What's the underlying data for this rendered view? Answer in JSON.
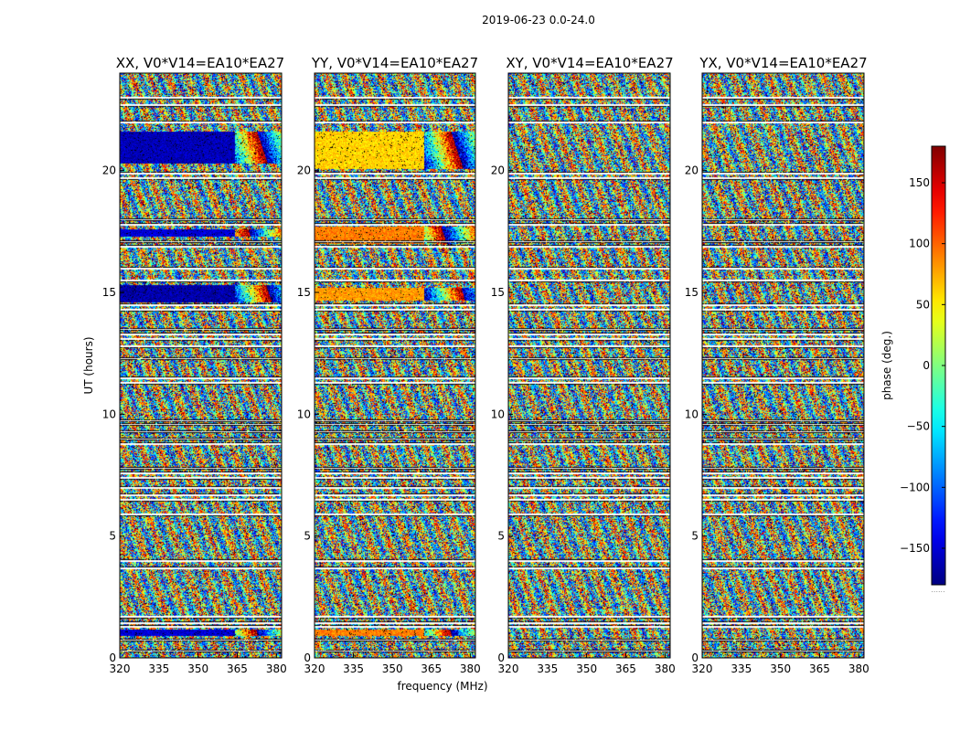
{
  "chart_data": {
    "type": "heatmap",
    "suptitle": "2019-06-23 0.0-24.0",
    "xlabel": "frequency (MHz)",
    "ylabel": "UT (hours)",
    "xlim": [
      320,
      382
    ],
    "ylim": [
      0,
      24
    ],
    "xticks": [
      320,
      335,
      350,
      365,
      380
    ],
    "yticks": [
      0,
      5,
      10,
      15,
      20
    ],
    "panels": [
      {
        "title": "XX, V0*V14=EA10*EA27",
        "coherent": [
          {
            "ut": [
              20.3,
              21.6
            ],
            "fmax": 364,
            "phase": -160
          },
          {
            "ut": [
              17.3,
              17.6
            ],
            "fmax": 364,
            "phase": -150
          },
          {
            "ut": [
              14.6,
              15.3
            ],
            "fmax": 364,
            "phase": -165
          },
          {
            "ut": [
              0.9,
              1.2
            ],
            "fmax": 364,
            "phase": -150
          }
        ]
      },
      {
        "title": "YY, V0*V14=EA10*EA27",
        "coherent": [
          {
            "ut": [
              20.1,
              21.6
            ],
            "fmax": 362,
            "phase": 60
          },
          {
            "ut": [
              17.0,
              17.7
            ],
            "fmax": 362,
            "phase": 90
          },
          {
            "ut": [
              14.7,
              15.2
            ],
            "fmax": 362,
            "phase": 80
          },
          {
            "ut": [
              0.9,
              1.2
            ],
            "fmax": 362,
            "phase": 90
          }
        ]
      },
      {
        "title": "XY, V0*V14=EA10*EA27",
        "coherent": []
      },
      {
        "title": "YX, V0*V14=EA10*EA27",
        "coherent": []
      }
    ],
    "flagged_ut_rows": [
      0.3,
      0.75,
      1.3,
      1.45,
      1.7,
      3.7,
      4.0,
      5.9,
      6.5,
      6.7,
      7.0,
      7.4,
      7.6,
      7.8,
      8.8,
      9.0,
      9.3,
      9.6,
      9.75,
      11.3,
      11.5,
      12.3,
      12.8,
      13.1,
      13.3,
      13.5,
      14.3,
      14.5,
      15.5,
      16.0,
      16.9,
      17.1,
      17.8,
      18.0,
      19.7,
      19.9,
      22.0,
      22.7,
      23.0
    ],
    "colorbar": {
      "label": "phase (deg.)",
      "range": [
        -180,
        180
      ],
      "ticks": [
        150,
        100,
        50,
        0,
        -50,
        -100,
        -150
      ],
      "tick_labels": [
        "150",
        "100",
        "50",
        "0",
        "−50",
        "−100",
        "−150"
      ],
      "colormap": "jet",
      "footer": "......"
    }
  }
}
